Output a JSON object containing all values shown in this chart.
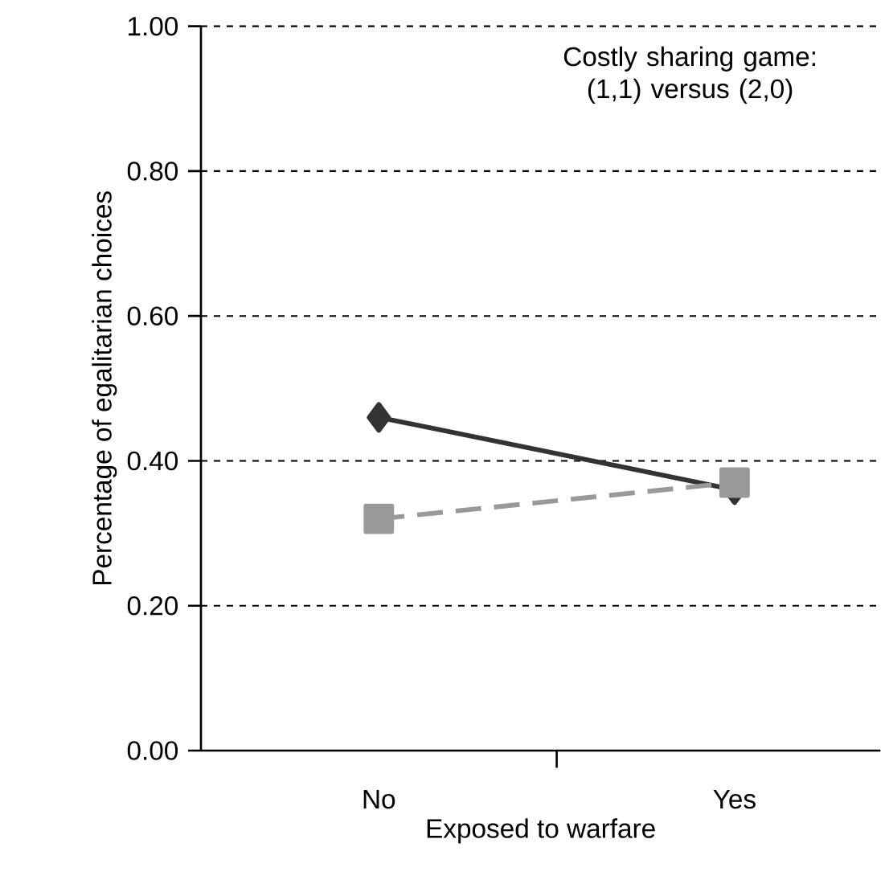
{
  "chart_data": {
    "type": "line",
    "xlabel": "Exposed to warfare",
    "ylabel": "Percentage of egalitarian choices",
    "annotations": [
      "Costly sharing game: (1,1) versus (2,0)"
    ],
    "categories": [
      "No",
      "Yes"
    ],
    "series": [
      {
        "color": "#333333",
        "values": [
          0.46,
          0.36
        ],
        "marker": "diamond",
        "line_style": "solid"
      },
      {
        "color": "#999999",
        "values": [
          0.32,
          0.37
        ],
        "marker": "square",
        "line_style": "dashed"
      }
    ],
    "ylim": [
      0,
      1
    ],
    "yticks": [
      {
        "value": 0,
        "label": "0.00"
      },
      {
        "value": 0.2,
        "label": "0.20"
      },
      {
        "value": 0.4,
        "label": "0.40"
      },
      {
        "value": 0.6,
        "label": "0.60"
      },
      {
        "value": 0.8,
        "label": "0.80"
      },
      {
        "value": 1,
        "label": "1.00"
      }
    ],
    "grid": "y"
  }
}
